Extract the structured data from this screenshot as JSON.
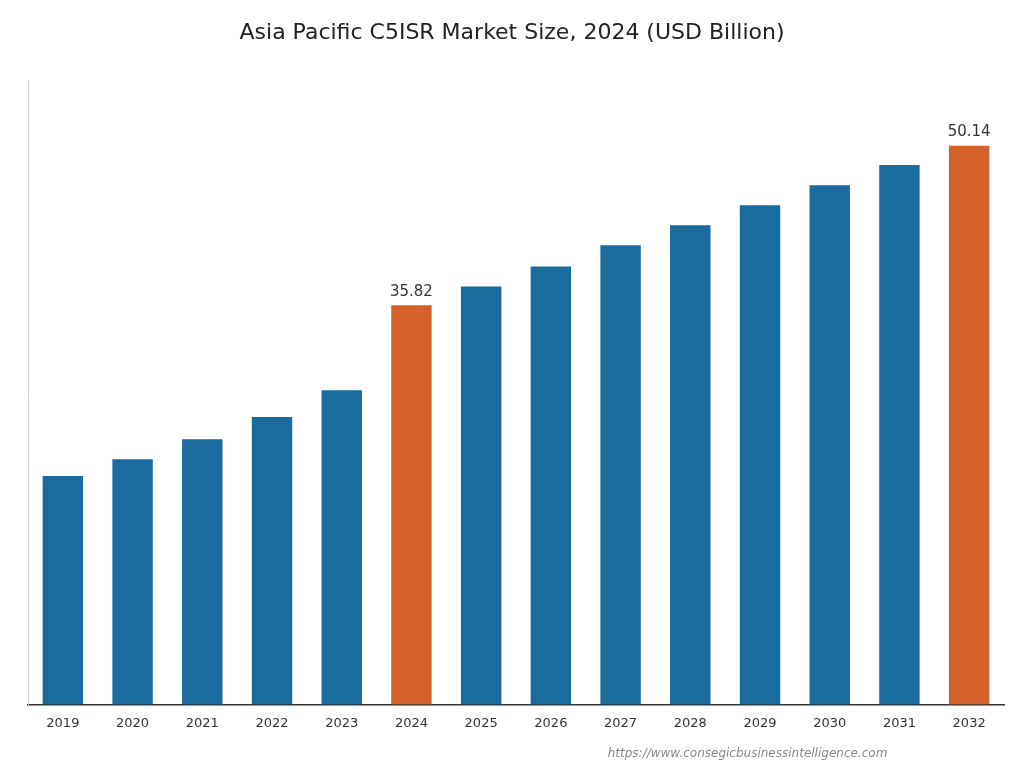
{
  "chart_data": {
    "type": "bar",
    "title": "Asia Pacific C5ISR Market Size, 2024 (USD Billion)",
    "categories": [
      "2019",
      "2020",
      "2021",
      "2022",
      "2023",
      "2024",
      "2025",
      "2026",
      "2027",
      "2028",
      "2029",
      "2030",
      "2031",
      "2032"
    ],
    "values": [
      20.5,
      22.0,
      23.8,
      25.8,
      28.2,
      35.82,
      37.5,
      39.3,
      41.2,
      43.0,
      44.8,
      46.6,
      48.4,
      50.14
    ],
    "value_labels": [
      null,
      null,
      null,
      null,
      null,
      "35.82",
      null,
      null,
      null,
      null,
      null,
      null,
      null,
      "50.14"
    ],
    "colors": [
      "#1a6b9e",
      "#1a6b9e",
      "#1a6b9e",
      "#1a6b9e",
      "#1a6b9e",
      "#d4622a",
      "#1a6b9e",
      "#1a6b9e",
      "#1a6b9e",
      "#1a6b9e",
      "#1a6b9e",
      "#1a6b9e",
      "#1a6b9e",
      "#d4622a"
    ],
    "ylim": [
      0,
      56
    ],
    "tick_labels": "x",
    "grid": false,
    "annotations": [
      "https://www.consegicbusinessintelligence.com"
    ]
  }
}
